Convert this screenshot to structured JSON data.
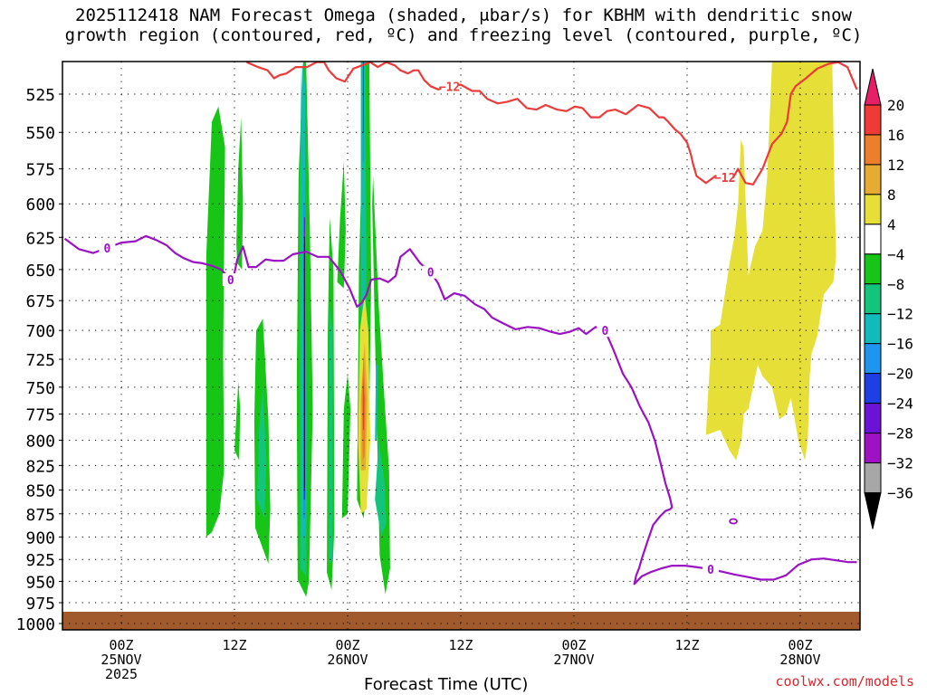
{
  "title": {
    "line1": "2025112418 NAM Forecast Omega (shaded, μbar/s) for KBHM with dendritic snow",
    "line2": "growth region (contoured, red, ºC) and freezing level (contoured, purple, ºC)"
  },
  "credit": "coolwx.com/models",
  "chart_data": {
    "type": "heatmap",
    "xlabel": "Forecast Time (UTC)",
    "x_range_hours": [
      -6,
      78
    ],
    "x_ticks": [
      {
        "h": 0,
        "lines": [
          "00Z",
          "25NOV",
          "2025"
        ]
      },
      {
        "h": 12,
        "lines": [
          "12Z"
        ]
      },
      {
        "h": 24,
        "lines": [
          "00Z",
          "26NOV"
        ]
      },
      {
        "h": 36,
        "lines": [
          "12Z"
        ]
      },
      {
        "h": 48,
        "lines": [
          "00Z",
          "27NOV"
        ]
      },
      {
        "h": 60,
        "lines": [
          "12Z"
        ]
      },
      {
        "h": 72,
        "lines": [
          "00Z",
          "28NOV"
        ]
      }
    ],
    "y_range_hpa": [
      505,
      1012
    ],
    "y_ticks": [
      525,
      550,
      575,
      600,
      625,
      650,
      675,
      700,
      725,
      750,
      775,
      800,
      825,
      850,
      875,
      900,
      925,
      950,
      975,
      1000
    ],
    "grid": true,
    "colorbar": {
      "labels": [
        "20",
        "16",
        "12",
        "8",
        "4",
        "−4",
        "−8",
        "−12",
        "−16",
        "−20",
        "−24",
        "−28",
        "−32",
        "−36"
      ],
      "colors": [
        "#e61f67",
        "#f03a35",
        "#ee7f2a",
        "#e5ab33",
        "#e5df37",
        "#ffffff",
        "#16c516",
        "#12c47c",
        "#12bbbb",
        "#1e95ef",
        "#1e3fe5",
        "#6a12d6",
        "#9e12c4",
        "#a7a7a7",
        "#000000"
      ]
    },
    "omega_regions": [
      {
        "band": "-8..-4",
        "color": "#16c516",
        "h": [
          9,
          9.6,
          10.4,
          10.9,
          10.8,
          11,
          10.3,
          9.6,
          9,
          9
        ],
        "p": [
          900,
          895,
          875,
          830,
          720,
          560,
          533,
          543,
          640,
          900
        ]
      },
      {
        "band": "-8..-4",
        "color": "#16c516",
        "h": [
          12.3,
          12.8,
          12.9,
          12.7,
          12.4,
          12.2,
          12.3
        ],
        "p": [
          645,
          650,
          600,
          540,
          575,
          630,
          645
        ]
      },
      {
        "band": "-8..-4",
        "color": "#16c516",
        "h": [
          14.2,
          15.6,
          15.8,
          15.6,
          15,
          14.3,
          14.1,
          14.2
        ],
        "p": [
          890,
          930,
          870,
          780,
          690,
          700,
          780,
          890
        ]
      },
      {
        "band": "-8..-4",
        "color": "#16c516",
        "h": [
          12,
          12.5,
          12.6,
          12.4,
          12
        ],
        "p": [
          810,
          820,
          770,
          745,
          810
        ]
      },
      {
        "band": "-8..-4",
        "color": "#16c516",
        "h": [
          18.7,
          19.6,
          19.9,
          20.3,
          20,
          19.6,
          19.3,
          18.8,
          18.6,
          18.7
        ],
        "p": [
          948,
          968,
          950,
          770,
          620,
          505,
          505,
          580,
          750,
          948
        ]
      },
      {
        "band": "-8..-4",
        "color": "#16c516",
        "h": [
          21.8,
          22.3,
          22.6,
          22.5,
          22.1,
          21.9,
          21.8
        ],
        "p": [
          940,
          960,
          890,
          650,
          610,
          700,
          940
        ]
      },
      {
        "band": "-8..-4",
        "color": "#16c516",
        "h": [
          23.4,
          24,
          24.3,
          24,
          23.6,
          23.4
        ],
        "p": [
          880,
          875,
          770,
          738,
          770,
          880
        ]
      },
      {
        "band": "-8..-4",
        "color": "#16c516",
        "h": [
          25,
          25.7,
          26.2,
          26.5,
          26.3,
          25.8,
          25.2,
          25
        ],
        "p": [
          860,
          880,
          830,
          660,
          505,
          505,
          650,
          860
        ]
      },
      {
        "band": "-8..-4",
        "color": "#16c516",
        "h": [
          26.6,
          27.4,
          28,
          28.5,
          28.4,
          27.9,
          27.3,
          26.7,
          26.6
        ],
        "p": [
          600,
          920,
          965,
          935,
          830,
          760,
          680,
          580,
          600
        ]
      },
      {
        "band": "-8..-4",
        "color": "#16c516",
        "h": [
          22.9,
          23.6,
          23.8,
          23.6,
          23.2,
          22.9
        ],
        "p": [
          660,
          665,
          620,
          570,
          610,
          660
        ]
      },
      {
        "band": "-12..-8",
        "color": "#12c47c",
        "h": [
          14.4,
          15.2,
          15.4,
          15,
          14.6,
          14.4
        ],
        "p": [
          860,
          880,
          820,
          750,
          790,
          860
        ]
      },
      {
        "band": "-12..-8",
        "color": "#12c47c",
        "h": [
          19,
          19.6,
          19.7,
          19.5,
          19.1,
          18.9,
          19
        ],
        "p": [
          935,
          945,
          800,
          600,
          505,
          600,
          935
        ]
      },
      {
        "band": "-12..-8",
        "color": "#12c47c",
        "h": [
          22,
          22.4,
          22.4,
          22.1,
          22
        ],
        "p": [
          930,
          925,
          700,
          680,
          930
        ]
      },
      {
        "band": "-12..-8",
        "color": "#12c47c",
        "h": [
          25.4,
          25.8,
          26,
          25.9,
          25.4
        ],
        "p": [
          800,
          820,
          650,
          505,
          505
        ]
      },
      {
        "band": "-12..-8",
        "color": "#12c47c",
        "h": [
          26.9,
          27.6,
          28.1,
          27.9,
          27.3,
          26.9
        ],
        "p": [
          860,
          900,
          885,
          840,
          800,
          860
        ]
      },
      {
        "band": "-16..-12",
        "color": "#12bbbb",
        "h": [
          19.2,
          19.5,
          19.5,
          19.2,
          19.2
        ],
        "p": [
          900,
          900,
          520,
          505,
          900
        ]
      },
      {
        "band": "-16..-12",
        "color": "#12bbbb",
        "h": [
          25.55,
          25.75,
          25.8,
          25.55
        ],
        "p": [
          700,
          700,
          505,
          505
        ]
      },
      {
        "band": "-16..-12",
        "color": "#12bbbb",
        "h": [
          26.9,
          27.1,
          27.2,
          27,
          26.9
        ],
        "p": [
          800,
          800,
          730,
          730,
          800
        ]
      },
      {
        "band": "-20..-16",
        "color": "#1e95ef",
        "h": [
          19.3,
          19.5,
          19.5,
          19.3
        ],
        "p": [
          880,
          880,
          600,
          600
        ]
      },
      {
        "band": "-20..-16",
        "color": "#1e95ef",
        "h": [
          25.6,
          25.75,
          25.75,
          25.6
        ],
        "p": [
          570,
          570,
          505,
          505
        ]
      },
      {
        "band": "-24..-20",
        "color": "#1e3fe5",
        "h": [
          19.35,
          19.5,
          19.5,
          19.35
        ],
        "p": [
          860,
          860,
          630,
          630
        ]
      },
      {
        "band": "-24..-20",
        "color": "#1e3fe5",
        "h": [
          25.63,
          25.73,
          25.73,
          25.63
        ],
        "p": [
          550,
          550,
          505,
          505
        ]
      },
      {
        "band": "-28..-24",
        "color": "#6a12d6",
        "h": [
          19.37,
          19.48,
          19.48,
          19.37
        ],
        "p": [
          850,
          850,
          610,
          610
        ]
      },
      {
        "band": "-32..-28",
        "color": "#9e12c4",
        "h": [
          19.39,
          19.46,
          19.46,
          19.39
        ],
        "p": [
          840,
          840,
          620,
          620
        ]
      },
      {
        "band": "< -36",
        "color": "#000000",
        "h": [
          19.4,
          19.45,
          19.45,
          19.4
        ],
        "p": [
          848,
          848,
          625,
          625
        ]
      },
      {
        "band": "4..8",
        "color": "#e5df37",
        "h": [
          25.4,
          26,
          26.4,
          26.2,
          25.8,
          25.3,
          25.1,
          25.4
        ],
        "p": [
          875,
          870,
          800,
          700,
          670,
          700,
          800,
          875
        ]
      },
      {
        "band": "8..12",
        "color": "#e5ab33",
        "h": [
          25.5,
          25.9,
          26.1,
          25.8,
          25.4,
          25.4
        ],
        "p": [
          830,
          830,
          760,
          710,
          760,
          830
        ]
      },
      {
        "band": "12..16",
        "color": "#ee7f2a",
        "h": [
          25.6,
          25.8,
          25.9,
          25.7,
          25.5,
          25.6
        ],
        "p": [
          820,
          815,
          760,
          720,
          760,
          820
        ]
      },
      {
        "band": "16..20",
        "color": "#f03a35",
        "h": [
          25.62,
          25.75,
          25.78,
          25.65,
          25.62
        ],
        "p": [
          790,
          790,
          760,
          740,
          790
        ]
      },
      {
        "band": "4..8",
        "color": "#e5df37",
        "h": [
          62,
          63.5,
          64.5,
          65.2,
          65.8,
          66,
          66.5,
          67.5,
          68,
          69,
          69.8,
          70.5,
          71,
          71.8,
          72.5,
          72.8,
          73,
          73.2,
          73.8,
          74.5,
          75.5,
          75.8,
          75.6,
          75.4,
          74.2,
          72.8,
          71.4,
          70,
          69,
          68.5,
          68,
          67.2,
          66.5,
          66,
          65.7,
          65.4,
          65,
          64.5,
          64,
          63.5,
          62.5,
          62.5,
          62.2,
          62
        ],
        "p": [
          795,
          790,
          810,
          820,
          798,
          775,
          770,
          730,
          740,
          750,
          780,
          775,
          760,
          800,
          820,
          800,
          740,
          720,
          705,
          670,
          660,
          640,
          580,
          505,
          505,
          505,
          505,
          505,
          505,
          580,
          620,
          632,
          655,
          560,
          555,
          600,
          625,
          645,
          670,
          695,
          700,
          720,
          760,
          795
        ]
      }
    ],
    "freezing_level_0C": {
      "label": "0",
      "h": [
        -6,
        -4.5,
        -3,
        -1.5,
        0,
        1.5,
        2.6,
        3.7,
        4.8,
        5.7,
        6.6,
        7.6,
        8.6,
        9.6,
        10.6,
        11.6,
        11.8,
        12.3,
        12.9,
        13.5,
        14.3,
        15.3,
        16.2,
        17.2,
        18.2,
        19.6,
        20.8,
        22,
        23.2,
        24.2,
        25,
        25.5,
        26,
        26.5,
        27.4,
        28.3,
        29.1,
        29.6,
        30.6,
        31.7,
        32.8,
        33.6,
        34.3,
        35.3,
        36.4,
        37.5,
        38.5,
        39.3,
        40.5,
        41.8,
        43.1,
        44.3,
        45.5,
        46.5,
        47.6,
        48.5,
        49.3,
        50.3,
        51.3,
        52.2,
        53.2,
        54.1,
        55,
        55.9,
        56.6,
        57.2,
        57.7,
        58.2,
        58.4,
        58.2,
        57.7,
        57.1,
        56.4,
        55.8,
        55.2,
        54.9,
        54.6,
        54.4,
        55.2,
        56.2,
        57.3,
        58.4,
        59.8,
        61.2,
        62.5,
        63.8,
        65,
        66.4,
        67.8,
        69.2,
        70.5,
        71.8,
        73.2,
        74.5,
        75.8,
        77.1,
        78
      ],
      "p": [
        626,
        634,
        637,
        633,
        629,
        628,
        624,
        627,
        631,
        637,
        641,
        644,
        645,
        647,
        650,
        658,
        660,
        642,
        632,
        648,
        648,
        642,
        643,
        643,
        638,
        636,
        640,
        640,
        651,
        665,
        680,
        677,
        670,
        658,
        657,
        660,
        655,
        640,
        634,
        645,
        652,
        661,
        674,
        669,
        671,
        678,
        682,
        689,
        694,
        699,
        697,
        698,
        701,
        703,
        701,
        698,
        703,
        697,
        700,
        717,
        738,
        750,
        768,
        783,
        801,
        823,
        843,
        859,
        868,
        870,
        872,
        878,
        887,
        905,
        924,
        935,
        943,
        953,
        944,
        939,
        935,
        932,
        932,
        934,
        936,
        939,
        942,
        945,
        948,
        948,
        943,
        931,
        925,
        924,
        926,
        928,
        928
      ]
    },
    "dendritic_minus12C": {
      "label": "−12",
      "h": [
        13.3,
        14.5,
        15.5,
        16.2,
        16.8,
        17.5,
        18.5,
        19.7,
        20.7,
        21.5,
        22,
        22.8,
        23.7,
        24.6,
        25.5,
        26.4,
        27.2,
        28.1,
        29,
        29.6,
        30.4,
        31,
        31.5,
        32.1,
        32.8,
        33.6,
        34.8,
        36,
        37.2,
        38,
        38.8,
        39.9,
        40.9,
        42,
        43,
        44,
        45,
        46.2,
        47.2,
        48.1,
        48.9,
        49.8,
        50.7,
        51.5,
        52.4,
        53.5,
        54.8,
        56,
        57,
        57.5,
        58,
        58.7,
        59.3,
        60,
        60.4,
        60.6,
        61,
        62,
        63,
        64,
        64.9,
        65.4,
        65.8,
        66.2,
        67,
        68,
        69,
        70,
        70.6,
        71,
        71.5,
        72.6,
        73.8,
        75,
        76,
        77,
        78
      ],
      "p": [
        505,
        508,
        510,
        515,
        513,
        512,
        508,
        508,
        505,
        505,
        510,
        515,
        517,
        509,
        507,
        505,
        508,
        505,
        507,
        510,
        512,
        510,
        510,
        516,
        520,
        522,
        520,
        519,
        523,
        523,
        528,
        531,
        530,
        528,
        534,
        535,
        532,
        535,
        536,
        533,
        534,
        540,
        540,
        536,
        535,
        538,
        532,
        534,
        540,
        540,
        543,
        548,
        551,
        557,
        565,
        571,
        580,
        585,
        580,
        581,
        581,
        575,
        580,
        585,
        586,
        575,
        558,
        551,
        543,
        525,
        520,
        515,
        509,
        506,
        505,
        508,
        522
      ]
    }
  }
}
